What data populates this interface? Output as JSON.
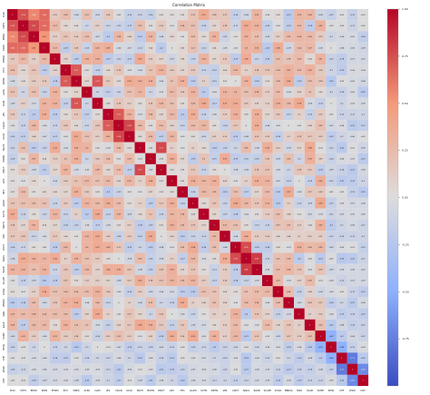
{
  "chart_data": {
    "type": "heatmap",
    "title": "Correlation Matrix",
    "variables": [
      "PLDI",
      "SHTS",
      "BEDR",
      "RDIN",
      "BHSM",
      "ECV",
      "WMIK",
      "ALEK",
      "DAM",
      "JES",
      "CDAN",
      "SCLD",
      "SRCH",
      "MSHN",
      "DNCT",
      "GE1",
      "HE1",
      "AGDO",
      "SCTN",
      "MRTN",
      "SPR",
      "LNOT",
      "NAKS",
      "BAKB",
      "SCAPE",
      "SCWA",
      "BBRSS",
      "SWR",
      "RALB",
      "SUMP",
      "BOW",
      "CHF",
      "WSW",
      "DST"
    ],
    "colorbar_ticks": [
      1.0,
      0.75,
      0.5,
      0.25,
      0.0,
      -0.25,
      -0.5,
      -0.75
    ],
    "vmin": -1.0,
    "vmax": 1.0,
    "colormap": "coolwarm",
    "anchors": [
      {
        "row": 1,
        "col": 0,
        "value": 0.74
      },
      {
        "row": 1,
        "col": 2,
        "value": 0.77
      },
      {
        "row": 1,
        "col": 3,
        "value": 0.66
      },
      {
        "row": 1,
        "col": 4,
        "value": 0.27
      },
      {
        "row": 2,
        "col": 0,
        "value": 0.56
      },
      {
        "row": 2,
        "col": 1,
        "value": 0.77
      },
      {
        "row": 2,
        "col": 3,
        "value": 0.51
      },
      {
        "row": 3,
        "col": 0,
        "value": 0.66
      },
      {
        "row": 3,
        "col": 2,
        "value": 0.51
      },
      {
        "row": 3,
        "col": 4,
        "value": 0.27
      },
      {
        "row": 6,
        "col": 5,
        "value": 0.71
      },
      {
        "row": 6,
        "col": 8,
        "value": 0.73
      },
      {
        "row": 9,
        "col": 10,
        "value": 0.71
      },
      {
        "row": 10,
        "col": 11,
        "value": 0.78
      },
      {
        "row": 12,
        "col": 14,
        "value": 0.77
      },
      {
        "row": 21,
        "col": 22,
        "value": 0.76
      },
      {
        "row": 22,
        "col": 23,
        "value": 0.81
      },
      {
        "row": 29,
        "col": 30,
        "value": -0.47
      },
      {
        "row": 30,
        "col": 31,
        "value": -0.49
      },
      {
        "row": 31,
        "col": 32,
        "value": -0.77
      },
      {
        "row": 32,
        "col": 33,
        "value": -0.69
      },
      {
        "row": 33,
        "col": 32,
        "value": -0.69
      }
    ]
  }
}
